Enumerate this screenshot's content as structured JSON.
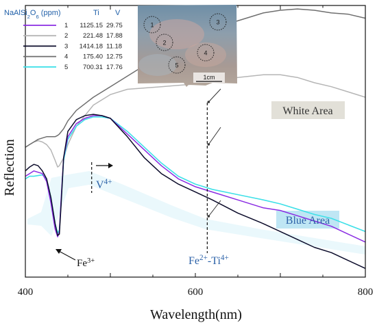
{
  "chart_data": {
    "type": "line",
    "xlabel": "Wavelength(nm)",
    "ylabel": "Reflection",
    "xlim": [
      400,
      800
    ],
    "xticks": [
      "400",
      "600",
      "800"
    ],
    "y_ticks_shown": false,
    "legend": {
      "header": {
        "main": "NaAlSi",
        "sub1": "2",
        "mid": "O",
        "sub2": "6",
        "unit": " (ppm)",
        "col_ti": "Ti",
        "col_v": "V"
      },
      "placement": "top-left",
      "entries": [
        {
          "id": "1",
          "ti": "1125.15",
          "v": "29.75",
          "color": "#8a2be2"
        },
        {
          "id": "2",
          "ti": "221.48",
          "v": "17.88",
          "color": "#b5b5b5"
        },
        {
          "id": "3",
          "ti": "1414.18",
          "v": "11.18",
          "color": "#0b0b2a"
        },
        {
          "id": "4",
          "ti": "175.40",
          "v": "12.75",
          "color": "#6e6e6e"
        },
        {
          "id": "5",
          "ti": "700.31",
          "v": "17.76",
          "color": "#3fe0e8"
        }
      ]
    },
    "series": [
      {
        "id": "1",
        "color": "#8a2be2",
        "x": [
          400,
          405,
          410,
          420,
          425,
          430,
          435,
          438,
          440,
          442,
          445,
          450,
          460,
          470,
          480,
          490,
          500,
          520,
          540,
          560,
          580,
          600,
          620,
          650,
          680,
          700,
          720,
          740,
          760,
          780,
          800
        ],
        "y": [
          0.37,
          0.38,
          0.39,
          0.38,
          0.35,
          0.27,
          0.17,
          0.14,
          0.16,
          0.28,
          0.44,
          0.52,
          0.57,
          0.59,
          0.6,
          0.6,
          0.59,
          0.53,
          0.47,
          0.41,
          0.36,
          0.33,
          0.31,
          0.28,
          0.25,
          0.24,
          0.22,
          0.2,
          0.18,
          0.15,
          0.12
        ]
      },
      {
        "id": "2",
        "color": "#b5b5b5",
        "x": [
          400,
          405,
          410,
          415,
          420,
          425,
          430,
          435,
          438,
          440,
          445,
          450,
          460,
          480,
          500,
          520,
          540,
          560,
          580,
          600,
          610,
          620,
          650,
          680,
          700,
          720,
          740,
          760,
          780,
          800
        ],
        "y": [
          0.48,
          0.49,
          0.5,
          0.505,
          0.5,
          0.49,
          0.47,
          0.43,
          0.405,
          0.41,
          0.44,
          0.49,
          0.56,
          0.64,
          0.68,
          0.7,
          0.705,
          0.71,
          0.715,
          0.72,
          0.72,
          0.73,
          0.745,
          0.755,
          0.755,
          0.745,
          0.725,
          0.71,
          0.69,
          0.67
        ]
      },
      {
        "id": "3",
        "color": "#0b0b2a",
        "x": [
          400,
          405,
          410,
          415,
          420,
          425,
          430,
          435,
          438,
          440,
          442,
          445,
          450,
          460,
          470,
          480,
          490,
          500,
          520,
          540,
          560,
          580,
          600,
          620,
          650,
          680,
          700,
          720,
          740,
          760,
          780,
          800
        ],
        "y": [
          0.39,
          0.405,
          0.415,
          0.41,
          0.39,
          0.36,
          0.29,
          0.19,
          0.145,
          0.15,
          0.26,
          0.44,
          0.54,
          0.585,
          0.6,
          0.605,
          0.6,
          0.59,
          0.52,
          0.44,
          0.38,
          0.34,
          0.31,
          0.28,
          0.23,
          0.19,
          0.16,
          0.13,
          0.1,
          0.08,
          0.05,
          0.02
        ]
      },
      {
        "id": "4",
        "color": "#6e6e6e",
        "x": [
          400,
          405,
          410,
          415,
          420,
          425,
          430,
          435,
          438,
          440,
          445,
          450,
          460,
          480,
          500,
          520,
          540,
          560,
          580,
          600,
          620,
          650,
          680,
          700,
          720,
          740,
          760,
          780,
          800
        ],
        "y": [
          0.48,
          0.49,
          0.5,
          0.51,
          0.515,
          0.52,
          0.52,
          0.52,
          0.525,
          0.53,
          0.55,
          0.58,
          0.62,
          0.67,
          0.71,
          0.75,
          0.79,
          0.83,
          0.87,
          0.9,
          0.93,
          0.96,
          0.99,
          1.0,
          1.005,
          1.0,
          0.99,
          0.985,
          0.97
        ]
      },
      {
        "id": "5",
        "color": "#3fe0e8",
        "x": [
          400,
          405,
          410,
          420,
          425,
          430,
          435,
          438,
          440,
          442,
          445,
          450,
          460,
          470,
          480,
          490,
          500,
          520,
          540,
          560,
          580,
          600,
          620,
          650,
          680,
          700,
          720,
          740,
          760,
          780,
          800
        ],
        "y": [
          0.36,
          0.37,
          0.37,
          0.375,
          0.36,
          0.29,
          0.19,
          0.155,
          0.165,
          0.27,
          0.43,
          0.51,
          0.56,
          0.585,
          0.595,
          0.595,
          0.59,
          0.54,
          0.48,
          0.42,
          0.37,
          0.34,
          0.32,
          0.3,
          0.28,
          0.265,
          0.245,
          0.225,
          0.21,
          0.185,
          0.16
        ]
      }
    ],
    "annotations": {
      "v4": {
        "base": "V",
        "sup": "4+"
      },
      "fe3": {
        "base": "Fe",
        "sup": "3+"
      },
      "feti": {
        "a": "Fe",
        "a_sup": "2+",
        "dash": "-Ti",
        "b_sup": "4+"
      },
      "white_area": "White Area",
      "blue_area": "Blue Area",
      "scale_bar": "1cm",
      "spot_labels": [
        "1",
        "2",
        "3",
        "4",
        "5"
      ]
    },
    "colors": {
      "white_area_bg": "#e2e0d8",
      "blue_area_bg": "#bfe6f4",
      "blue_text": "#2c62a8"
    }
  }
}
